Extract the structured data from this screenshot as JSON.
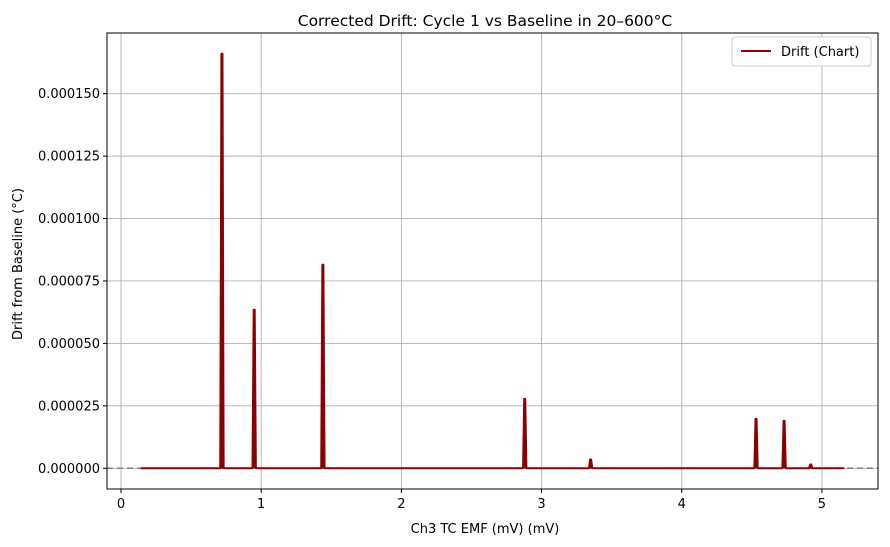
{
  "chart_data": {
    "type": "line",
    "title": "Corrected Drift: Cycle 1 vs Baseline in 20–600°C",
    "xlabel": "Ch3 TC EMF (mV) (mV)",
    "ylabel": "Drift from Baseline (°C)",
    "xlim": [
      -0.1,
      5.4
    ],
    "ylim": [
      -8.3e-06,
      0.0001743
    ],
    "xticks": [
      0,
      1,
      2,
      3,
      4,
      5
    ],
    "xtick_labels": [
      "0",
      "1",
      "2",
      "3",
      "4",
      "5"
    ],
    "yticks": [
      0,
      2.5e-05,
      5e-05,
      7.5e-05,
      0.0001,
      0.000125,
      0.00015
    ],
    "ytick_labels": [
      "0.000000",
      "0.000025",
      "0.000050",
      "0.000075",
      "0.000100",
      "0.000125",
      "0.000150"
    ],
    "grid": true,
    "legend": {
      "position": "top-right"
    },
    "series": [
      {
        "name": "Drift (Chart)",
        "color": "#8b0000",
        "x_range": [
          0.14,
          5.16
        ],
        "spikes": [
          {
            "x": 0.72,
            "y": 0.000166
          },
          {
            "x": 0.95,
            "y": 6.35e-05
          },
          {
            "x": 1.44,
            "y": 8.15e-05
          },
          {
            "x": 2.88,
            "y": 2.78e-05
          },
          {
            "x": 3.35,
            "y": 3.5e-06
          },
          {
            "x": 4.53,
            "y": 1.98e-05
          },
          {
            "x": 4.73,
            "y": 1.9e-05
          },
          {
            "x": 4.92,
            "y": 1.5e-06
          }
        ]
      }
    ],
    "reference_line": {
      "y": 0,
      "style": "dashed",
      "color": "#808080"
    }
  }
}
